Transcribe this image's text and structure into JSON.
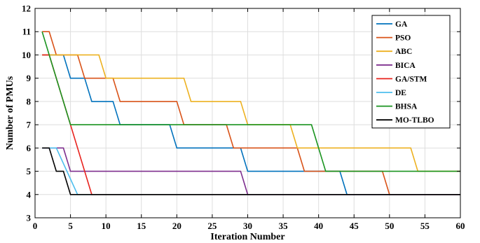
{
  "chart_data": {
    "type": "line",
    "title": "",
    "xlabel": "Iteration Number",
    "ylabel": "Number of PMUs",
    "xlim": [
      0,
      60
    ],
    "ylim": [
      3,
      12
    ],
    "xticks": [
      0,
      5,
      10,
      15,
      20,
      25,
      30,
      35,
      40,
      45,
      50,
      55,
      60
    ],
    "yticks": [
      3,
      4,
      5,
      6,
      7,
      8,
      9,
      10,
      11,
      12
    ],
    "grid": true,
    "legend_position": "top-right",
    "series": [
      {
        "name": "GA",
        "color": "#0072BD",
        "x": [
          1,
          4,
          5,
          7,
          8,
          11,
          12,
          19,
          20,
          29,
          30,
          43,
          44,
          60
        ],
        "y": [
          10,
          10,
          9,
          9,
          8,
          8,
          7,
          7,
          6,
          6,
          5,
          5,
          4,
          4
        ]
      },
      {
        "name": "PSO",
        "color": "#D95319",
        "x": [
          1,
          2,
          3,
          6,
          7,
          11,
          12,
          20,
          21,
          27,
          28,
          37,
          38,
          49,
          50,
          60
        ],
        "y": [
          11,
          11,
          10,
          10,
          9,
          9,
          8,
          8,
          7,
          7,
          6,
          6,
          5,
          5,
          4,
          4
        ]
      },
      {
        "name": "ABC",
        "color": "#EDB120",
        "x": [
          1,
          9,
          10,
          21,
          22,
          29,
          30,
          36,
          37,
          53,
          54,
          60
        ],
        "y": [
          10,
          10,
          9,
          9,
          8,
          8,
          7,
          7,
          6,
          6,
          5,
          5
        ]
      },
      {
        "name": "BICA",
        "color": "#7E2F8E",
        "x": [
          1,
          4,
          5,
          29,
          30,
          60
        ],
        "y": [
          6,
          6,
          5,
          5,
          4,
          4
        ]
      },
      {
        "name": "GA/STM",
        "color": "#E8231E",
        "x": [
          1,
          2,
          8,
          60
        ],
        "y": [
          10,
          10,
          4,
          4
        ]
      },
      {
        "name": "DE",
        "color": "#4DBEEE",
        "x": [
          1,
          3,
          6,
          60
        ],
        "y": [
          6,
          6,
          4,
          4
        ]
      },
      {
        "name": "BHSA",
        "color": "#1A9420",
        "x": [
          1,
          5,
          39,
          41,
          60
        ],
        "y": [
          11,
          7,
          7,
          5,
          5
        ]
      },
      {
        "name": "MO-TLBO",
        "color": "#000000",
        "x": [
          1,
          2,
          3,
          4,
          5,
          60
        ],
        "y": [
          6,
          6,
          5,
          5,
          4,
          4
        ]
      }
    ]
  }
}
